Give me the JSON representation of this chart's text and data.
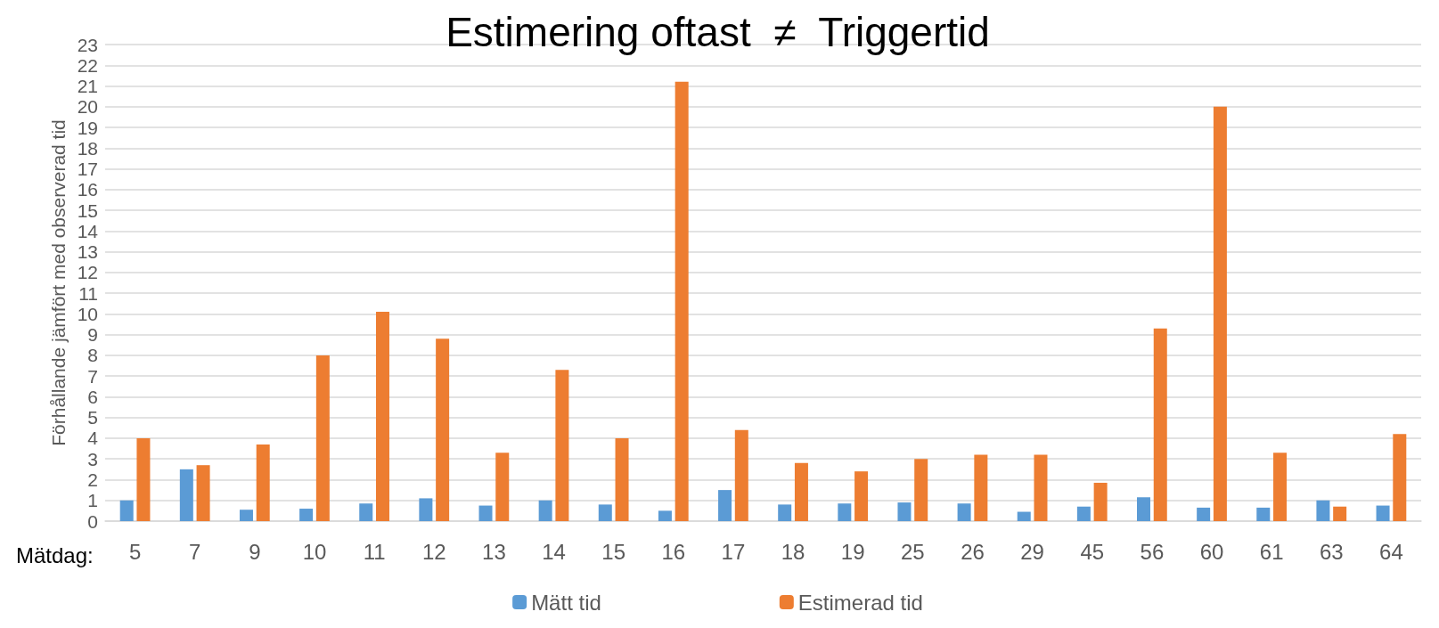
{
  "chart_data": {
    "type": "bar",
    "title": "Estimering oftast  ≠  Triggertid",
    "xlabel": "Mätdag:",
    "ylabel": "Förhållande jämfört med observerad tid",
    "categories": [
      "5",
      "7",
      "9",
      "10",
      "11",
      "12",
      "13",
      "14",
      "15",
      "16",
      "17",
      "18",
      "19",
      "25",
      "26",
      "29",
      "45",
      "56",
      "60",
      "61",
      "63",
      "64"
    ],
    "series": [
      {
        "name": "Mätt tid",
        "color": "#5b9bd5",
        "values": [
          1.0,
          2.5,
          0.55,
          0.6,
          0.85,
          1.1,
          0.75,
          1.0,
          0.8,
          0.5,
          1.5,
          0.8,
          0.85,
          0.9,
          0.85,
          0.45,
          0.7,
          1.15,
          0.65,
          0.65,
          1.0,
          0.75
        ]
      },
      {
        "name": "Estimerad tid",
        "color": "#ed7d31",
        "values": [
          4.0,
          2.7,
          3.7,
          8.0,
          10.1,
          8.8,
          3.3,
          7.3,
          4.0,
          21.2,
          4.4,
          2.8,
          2.4,
          3.0,
          3.2,
          3.2,
          1.85,
          9.3,
          20.0,
          3.3,
          0.7,
          4.2
        ]
      }
    ],
    "ylim": [
      0,
      23
    ],
    "yticks": [
      0,
      1,
      2,
      3,
      4,
      5,
      6,
      7,
      8,
      9,
      10,
      11,
      12,
      13,
      14,
      15,
      16,
      17,
      18,
      19,
      20,
      21,
      22,
      23
    ],
    "grid": "y",
    "legend": "bottom"
  }
}
